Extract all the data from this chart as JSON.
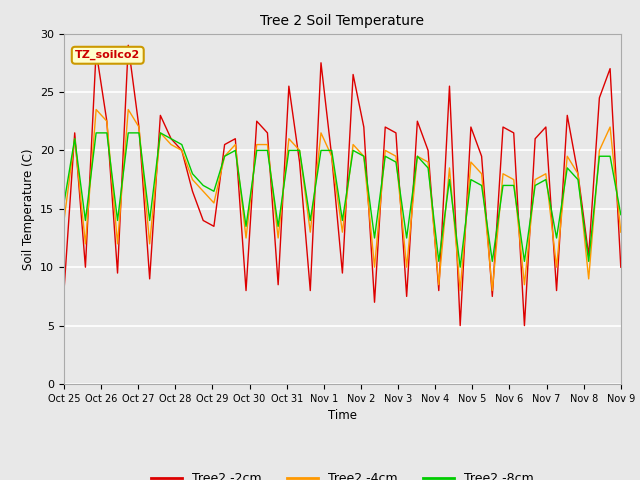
{
  "title": "Tree 2 Soil Temperature",
  "ylabel": "Soil Temperature (C)",
  "xlabel": "Time",
  "annotation": "TZ_soilco2",
  "xlim": [
    0,
    15
  ],
  "ylim": [
    0,
    30
  ],
  "yticks": [
    0,
    5,
    10,
    15,
    20,
    25,
    30
  ],
  "xtick_labels": [
    "Oct 25",
    "Oct 26",
    "Oct 27",
    "Oct 28",
    "Oct 29",
    "Oct 30",
    "Oct 31",
    "Nov 1",
    "Nov 2",
    "Nov 3",
    "Nov 4",
    "Nov 5",
    "Nov 6",
    "Nov 7",
    "Nov 8",
    "Nov 9"
  ],
  "bg_color": "#e8e8e8",
  "fig_color": "#e8e8e8",
  "grid_color": "#ffffff",
  "colors": {
    "2cm": "#dd0000",
    "4cm": "#ff9900",
    "8cm": "#00cc00"
  },
  "legend": [
    "Tree2 -2cm",
    "Tree2 -4cm",
    "Tree2 -8cm"
  ],
  "t_2cm": [
    8.0,
    21.5,
    10.0,
    28.5,
    22.5,
    9.5,
    29.0,
    22.0,
    9.0,
    23.0,
    21.0,
    20.0,
    16.5,
    14.0,
    13.5,
    20.5,
    21.0,
    8.0,
    22.5,
    21.5,
    8.5,
    25.5,
    19.0,
    8.0,
    27.5,
    19.5,
    9.5,
    26.5,
    22.0,
    7.0,
    22.0,
    21.5,
    7.5,
    22.5,
    20.0,
    8.0,
    25.5,
    5.0,
    22.0,
    19.5,
    7.5,
    22.0,
    21.5,
    5.0,
    21.0,
    22.0,
    8.0,
    23.0,
    18.0,
    11.0,
    24.5,
    27.0,
    10.0
  ],
  "t_4cm": [
    14.0,
    21.0,
    12.0,
    23.5,
    22.5,
    12.0,
    23.5,
    22.0,
    12.0,
    21.5,
    20.5,
    20.0,
    17.5,
    16.5,
    15.5,
    19.5,
    20.5,
    12.5,
    20.5,
    20.5,
    12.5,
    21.0,
    20.0,
    13.0,
    21.5,
    19.5,
    13.0,
    20.5,
    19.5,
    10.0,
    20.0,
    19.5,
    10.0,
    19.5,
    19.0,
    8.5,
    18.5,
    8.0,
    19.0,
    18.0,
    8.0,
    18.0,
    17.5,
    8.5,
    17.5,
    18.0,
    10.0,
    19.5,
    18.0,
    9.0,
    20.0,
    22.0,
    13.0
  ],
  "t_8cm": [
    15.5,
    21.0,
    14.0,
    21.5,
    21.5,
    14.0,
    21.5,
    21.5,
    14.0,
    21.5,
    21.0,
    20.5,
    18.0,
    17.0,
    16.5,
    19.5,
    20.0,
    13.5,
    20.0,
    20.0,
    13.5,
    20.0,
    20.0,
    14.0,
    20.0,
    20.0,
    14.0,
    20.0,
    19.5,
    12.5,
    19.5,
    19.0,
    12.5,
    19.5,
    18.5,
    10.5,
    17.5,
    10.0,
    17.5,
    17.0,
    10.5,
    17.0,
    17.0,
    10.5,
    17.0,
    17.5,
    12.5,
    18.5,
    17.5,
    10.5,
    19.5,
    19.5,
    14.5
  ]
}
